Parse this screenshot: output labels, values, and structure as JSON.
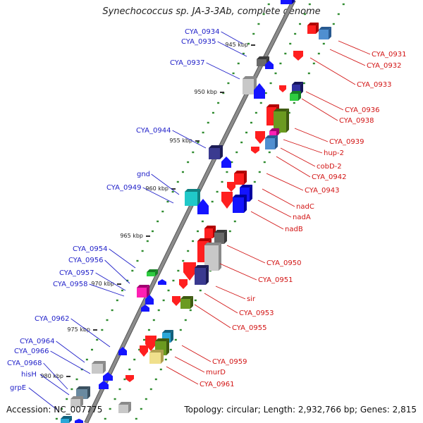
{
  "title": "Synechococcus sp. JA-3-3Ab, complete genome",
  "footer": {
    "accession": "Accession: NC_007775",
    "summary": "Topology: circular; Length: 2,932,766 bp; Genes: 2,815"
  },
  "colors": {
    "backbone": "#8c8c8c",
    "tick": "#2e8b2e",
    "left_label": "#1e1ec8",
    "right_label": "#d21414"
  },
  "kbp_labels": [
    "945 kbp",
    "950 kbp",
    "955 kbp",
    "960 kbp",
    "965 kbp",
    "970 kbp",
    "975 kbp",
    "980 kbp"
  ],
  "left_genes": [
    "CYA_0934",
    "CYA_0935",
    "CYA_0937",
    "CYA_0944",
    "gnd",
    "CYA_0949",
    "CYA_0954",
    "CYA_0956",
    "CYA_0957",
    "CYA_0958",
    "CYA_0962",
    "CYA_0964",
    "CYA_0966",
    "CYA_0968",
    "hisH",
    "grpE"
  ],
  "right_genes": [
    "CYA_0931",
    "CYA_0932",
    "CYA_0933",
    "CYA_0936",
    "CYA_0938",
    "CYA_0939",
    "hup-2",
    "cobD-2",
    "CYA_0942",
    "CYA_0943",
    "nadC",
    "nadA",
    "nadB",
    "CYA_0950",
    "CYA_0951",
    "sir",
    "CYA_0953",
    "CYA_0955",
    "CYA_0959",
    "murD",
    "CYA_0961"
  ]
}
